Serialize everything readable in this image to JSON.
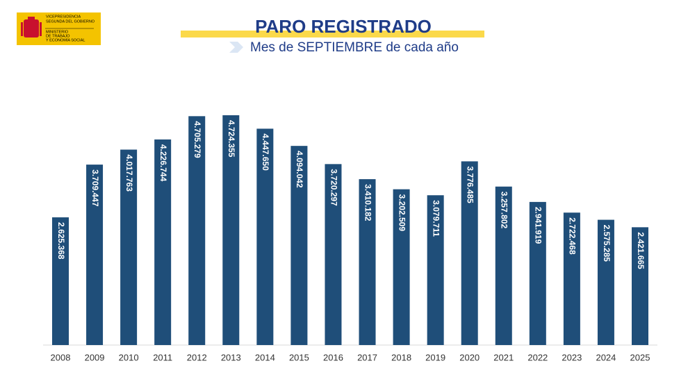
{
  "logo": {
    "lines": [
      "VICEPRESIDENCIA",
      "SEGUNDA DEL GOBIERNO",
      "MINISTERIO",
      "DE TRABAJO",
      "Y ECONOMÍA SOCIAL"
    ]
  },
  "chart_data": {
    "type": "bar",
    "title": "PARO REGISTRADO",
    "subtitle": "Mes de SEPTIEMBRE de cada año",
    "categories": [
      "2008",
      "2009",
      "2010",
      "2011",
      "2012",
      "2013",
      "2014",
      "2015",
      "2016",
      "2017",
      "2018",
      "2019",
      "2020",
      "2021",
      "2022",
      "2023",
      "2024",
      "2025"
    ],
    "values": [
      2625368,
      3709447,
      4017763,
      4226744,
      4705279,
      4724355,
      4447650,
      4094042,
      3720297,
      3410182,
      3202509,
      3079711,
      3776485,
      3257802,
      2941919,
      2722468,
      2575285,
      2421665
    ],
    "value_labels": [
      "2.625.368",
      "3.709.447",
      "4.017.763",
      "4.226.744",
      "4.705.279",
      "4.724.355",
      "4.447.650",
      "4.094.042",
      "3.720.297",
      "3.410.182",
      "3.202.509",
      "3.079.711",
      "3.776.485",
      "3.257.802",
      "2.941.919",
      "2.722.468",
      "2.575.285",
      "2.421.665"
    ],
    "color": "#1f4e79"
  }
}
